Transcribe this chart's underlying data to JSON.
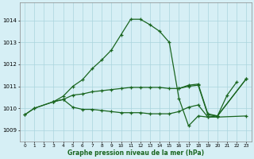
{
  "xlabel": "Graphe pression niveau de la mer (hPa)",
  "bg_color": "#d6eff5",
  "grid_color": "#aad4dd",
  "line_color": "#1a6620",
  "ylim": [
    1008.5,
    1014.8
  ],
  "yticks": [
    1009,
    1010,
    1011,
    1012,
    1013,
    1014
  ],
  "xlim": [
    -0.5,
    23.5
  ],
  "x_ticks": [
    0,
    1,
    2,
    3,
    4,
    5,
    6,
    7,
    8,
    9,
    10,
    11,
    12,
    13,
    14,
    15,
    16,
    17,
    18,
    19,
    20,
    21,
    22,
    23
  ],
  "line_A_x": [
    0,
    1,
    3,
    4,
    5,
    6,
    7,
    8,
    9,
    10,
    11,
    12,
    13,
    14,
    15,
    16,
    17,
    18,
    19,
    20,
    21,
    22
  ],
  "line_A_y": [
    1009.7,
    1010.0,
    1010.3,
    1010.55,
    1011.0,
    1011.3,
    1011.8,
    1012.2,
    1012.65,
    1013.35,
    1014.05,
    1014.05,
    1013.8,
    1013.5,
    1013.0,
    1010.45,
    1009.2,
    1009.65,
    1009.6,
    1009.65,
    1010.6,
    1011.2
  ],
  "line_B_x": [
    0,
    1,
    3,
    4,
    5,
    6,
    7,
    8,
    9,
    10,
    11,
    12,
    13,
    14,
    15,
    16,
    17,
    18,
    19,
    20,
    23
  ],
  "line_B_y": [
    1009.7,
    1010.0,
    1010.3,
    1010.4,
    1010.05,
    1009.95,
    1009.95,
    1009.9,
    1009.85,
    1009.8,
    1009.8,
    1009.8,
    1009.75,
    1009.75,
    1009.75,
    1009.85,
    1010.05,
    1010.15,
    1009.6,
    1009.6,
    1009.65
  ],
  "line_C_x": [
    3,
    4,
    5,
    6,
    7,
    8,
    9,
    10,
    11,
    12,
    13,
    14,
    15,
    16,
    17,
    18,
    19,
    20,
    23
  ],
  "line_C_y": [
    1010.3,
    1010.4,
    1010.6,
    1010.65,
    1010.75,
    1010.8,
    1010.85,
    1010.9,
    1010.95,
    1010.95,
    1010.95,
    1010.95,
    1010.9,
    1010.9,
    1011.0,
    1011.05,
    1009.7,
    1009.65,
    1011.35
  ],
  "line_D_x": [
    16,
    17,
    18,
    19,
    20,
    23
  ],
  "line_D_y": [
    1010.9,
    1011.05,
    1011.1,
    1009.75,
    1009.65,
    1011.35
  ]
}
